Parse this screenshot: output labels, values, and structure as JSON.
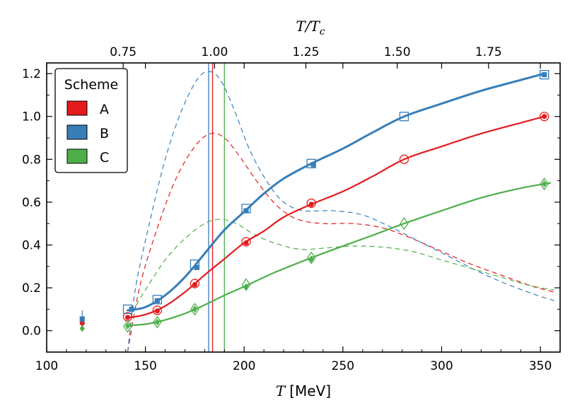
{
  "chart_data": {
    "type": "scatter",
    "xlabel_var": "T",
    "xlabel_unit": "[MeV]",
    "top_xlabel": "T/T",
    "top_xlabel_sub": "c",
    "xlim": [
      100,
      360
    ],
    "ylim": [
      -0.1,
      1.25
    ],
    "xticks": [
      100,
      150,
      200,
      250,
      300,
      350
    ],
    "yticks": [
      0.0,
      0.2,
      0.4,
      0.6,
      0.8,
      1.0,
      1.2
    ],
    "ytick_labels": [
      "0.0",
      "0.2",
      "0.4",
      "0.6",
      "0.8",
      "1.0",
      "1.2"
    ],
    "tc": 185,
    "top_ticks": [
      0.75,
      1.0,
      1.25,
      1.5,
      1.75
    ],
    "top_tick_labels": [
      "0.75",
      "1.00",
      "1.25",
      "1.50",
      "1.75"
    ],
    "legend_title": "Scheme",
    "series": [
      {
        "name": "A",
        "color": "#e41a1c",
        "open_marker": "circle",
        "vline": 184,
        "open_points": [
          [
            141,
            0.065
          ],
          [
            156,
            0.095
          ],
          [
            175,
            0.22
          ],
          [
            201,
            0.415
          ],
          [
            234,
            0.595
          ],
          [
            281,
            0.8
          ],
          [
            352,
            1.0
          ]
        ],
        "filled_points": [
          [
            118,
            0.035
          ],
          [
            141,
            0.062
          ],
          [
            156,
            0.092
          ],
          [
            175,
            0.215
          ],
          [
            201,
            0.41
          ],
          [
            234,
            0.59
          ],
          [
            352,
            1.0
          ]
        ],
        "fit": [
          [
            141,
            0.06
          ],
          [
            150,
            0.075
          ],
          [
            160,
            0.115
          ],
          [
            170,
            0.18
          ],
          [
            180,
            0.26
          ],
          [
            190,
            0.335
          ],
          [
            200,
            0.41
          ],
          [
            210,
            0.465
          ],
          [
            220,
            0.53
          ],
          [
            234,
            0.59
          ],
          [
            250,
            0.65
          ],
          [
            265,
            0.72
          ],
          [
            281,
            0.8
          ],
          [
            300,
            0.86
          ],
          [
            320,
            0.92
          ],
          [
            340,
            0.97
          ],
          [
            352,
            1.0
          ]
        ],
        "dashed": [
          [
            141,
            -0.1
          ],
          [
            147,
            0.2
          ],
          [
            155,
            0.45
          ],
          [
            165,
            0.7
          ],
          [
            175,
            0.86
          ],
          [
            183,
            0.92
          ],
          [
            190,
            0.9
          ],
          [
            198,
            0.81
          ],
          [
            207,
            0.69
          ],
          [
            217,
            0.58
          ],
          [
            227,
            0.52
          ],
          [
            240,
            0.5
          ],
          [
            255,
            0.5
          ],
          [
            270,
            0.48
          ],
          [
            285,
            0.43
          ],
          [
            300,
            0.37
          ],
          [
            315,
            0.31
          ],
          [
            330,
            0.26
          ],
          [
            345,
            0.21
          ],
          [
            357,
            0.18
          ]
        ]
      },
      {
        "name": "B",
        "color": "#377eb8",
        "open_marker": "square",
        "vline": 182,
        "open_points": [
          [
            141,
            0.1
          ],
          [
            156,
            0.145
          ],
          [
            175,
            0.31
          ],
          [
            201,
            0.57
          ],
          [
            234,
            0.78
          ],
          [
            281,
            1.0
          ],
          [
            352,
            1.195
          ]
        ],
        "filled_points": [
          [
            118,
            0.055
          ],
          [
            143,
            0.1
          ],
          [
            156,
            0.14
          ],
          [
            176,
            0.295
          ],
          [
            201,
            0.56
          ],
          [
            235,
            0.775
          ],
          [
            352,
            1.195
          ]
        ],
        "fit": [
          [
            141,
            0.095
          ],
          [
            150,
            0.11
          ],
          [
            160,
            0.165
          ],
          [
            170,
            0.25
          ],
          [
            180,
            0.36
          ],
          [
            190,
            0.47
          ],
          [
            200,
            0.555
          ],
          [
            210,
            0.64
          ],
          [
            220,
            0.71
          ],
          [
            234,
            0.78
          ],
          [
            250,
            0.85
          ],
          [
            265,
            0.925
          ],
          [
            281,
            1.0
          ],
          [
            300,
            1.06
          ],
          [
            320,
            1.12
          ],
          [
            340,
            1.17
          ],
          [
            352,
            1.2
          ]
        ],
        "dashed": [
          [
            141,
            -0.1
          ],
          [
            145,
            0.2
          ],
          [
            152,
            0.5
          ],
          [
            160,
            0.8
          ],
          [
            168,
            1.02
          ],
          [
            176,
            1.17
          ],
          [
            182,
            1.21
          ],
          [
            188,
            1.17
          ],
          [
            195,
            1.03
          ],
          [
            203,
            0.84
          ],
          [
            212,
            0.69
          ],
          [
            220,
            0.6
          ],
          [
            230,
            0.56
          ],
          [
            245,
            0.56
          ],
          [
            260,
            0.54
          ],
          [
            275,
            0.48
          ],
          [
            290,
            0.41
          ],
          [
            305,
            0.34
          ],
          [
            320,
            0.27
          ],
          [
            335,
            0.21
          ],
          [
            350,
            0.16
          ],
          [
            357,
            0.14
          ]
        ]
      },
      {
        "name": "C",
        "color": "#4daf4a",
        "open_marker": "diamond",
        "vline": 190,
        "open_points": [
          [
            141,
            0.02
          ],
          [
            156,
            0.04
          ],
          [
            175,
            0.1
          ],
          [
            201,
            0.215
          ],
          [
            234,
            0.34
          ],
          [
            281,
            0.5
          ],
          [
            352,
            0.685
          ]
        ],
        "filled_points": [
          [
            118,
            0.01
          ],
          [
            141,
            0.022
          ],
          [
            156,
            0.04
          ],
          [
            175,
            0.1
          ],
          [
            201,
            0.205
          ],
          [
            234,
            0.335
          ],
          [
            352,
            0.685
          ]
        ],
        "fit": [
          [
            141,
            0.025
          ],
          [
            150,
            0.03
          ],
          [
            160,
            0.05
          ],
          [
            170,
            0.08
          ],
          [
            180,
            0.12
          ],
          [
            190,
            0.165
          ],
          [
            201,
            0.21
          ],
          [
            215,
            0.27
          ],
          [
            234,
            0.34
          ],
          [
            250,
            0.395
          ],
          [
            265,
            0.445
          ],
          [
            281,
            0.5
          ],
          [
            300,
            0.56
          ],
          [
            320,
            0.62
          ],
          [
            340,
            0.665
          ],
          [
            355,
            0.69
          ]
        ],
        "dashed": [
          [
            141,
            0.05
          ],
          [
            150,
            0.19
          ],
          [
            160,
            0.33
          ],
          [
            170,
            0.43
          ],
          [
            180,
            0.5
          ],
          [
            188,
            0.52
          ],
          [
            196,
            0.5
          ],
          [
            205,
            0.45
          ],
          [
            215,
            0.41
          ],
          [
            228,
            0.38
          ],
          [
            240,
            0.385
          ],
          [
            255,
            0.395
          ],
          [
            270,
            0.39
          ],
          [
            285,
            0.37
          ],
          [
            300,
            0.33
          ],
          [
            315,
            0.29
          ],
          [
            330,
            0.25
          ],
          [
            345,
            0.21
          ],
          [
            357,
            0.19
          ]
        ]
      }
    ]
  }
}
